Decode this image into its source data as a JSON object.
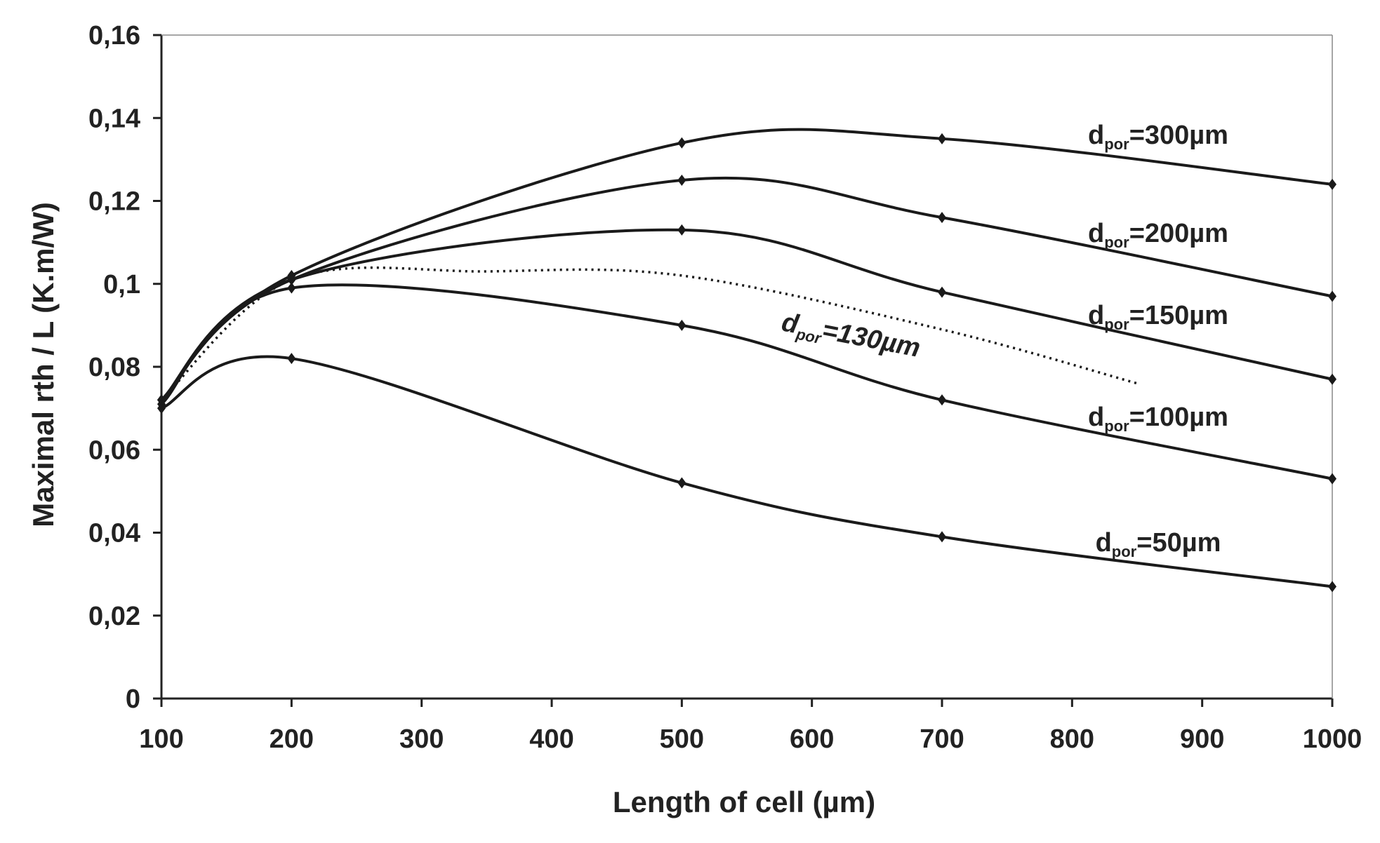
{
  "chart_data": {
    "type": "line",
    "xlabel": "Length of cell (µm)",
    "ylabel": "Maximal rth / L (K.m/W)",
    "xlim": [
      100,
      1000
    ],
    "ylim": [
      0,
      0.16
    ],
    "x_ticks": [
      "100",
      "200",
      "300",
      "400",
      "500",
      "600",
      "700",
      "800",
      "900",
      "1000"
    ],
    "y_ticks": [
      "0",
      "0,02",
      "0,04",
      "0,06",
      "0,08",
      "0,1",
      "0,12",
      "0,14",
      "0,16"
    ],
    "grid": false,
    "series": [
      {
        "label_main": "d",
        "label_sub": "por",
        "label_tail": "=300µm",
        "style": "solid",
        "x": [
          100,
          200,
          500,
          700,
          1000
        ],
        "y": [
          0.072,
          0.102,
          0.134,
          0.135,
          0.124
        ]
      },
      {
        "label_main": "d",
        "label_sub": "por",
        "label_tail": "=200µm",
        "style": "solid",
        "x": [
          100,
          200,
          500,
          700,
          1000
        ],
        "y": [
          0.072,
          0.101,
          0.125,
          0.116,
          0.097
        ]
      },
      {
        "label_main": "d",
        "label_sub": "por",
        "label_tail": "=150µm",
        "style": "solid",
        "x": [
          100,
          200,
          500,
          700,
          1000
        ],
        "y": [
          0.072,
          0.101,
          0.113,
          0.098,
          0.077
        ]
      },
      {
        "label_main": "d",
        "label_sub": "por",
        "label_tail": "=130µm",
        "style": "dotted",
        "x": [
          100,
          200,
          350,
          500,
          700,
          850
        ],
        "y": [
          0.072,
          0.101,
          0.103,
          0.102,
          0.089,
          0.076
        ]
      },
      {
        "label_main": "d",
        "label_sub": "por",
        "label_tail": "=100µm",
        "style": "solid",
        "x": [
          100,
          200,
          500,
          700,
          1000
        ],
        "y": [
          0.071,
          0.099,
          0.09,
          0.072,
          0.053
        ]
      },
      {
        "label_main": "d",
        "label_sub": "por",
        "label_tail": "=50µm",
        "style": "solid",
        "x": [
          100,
          200,
          500,
          700,
          1000
        ],
        "y": [
          0.07,
          0.082,
          0.052,
          0.039,
          0.027
        ]
      }
    ]
  }
}
